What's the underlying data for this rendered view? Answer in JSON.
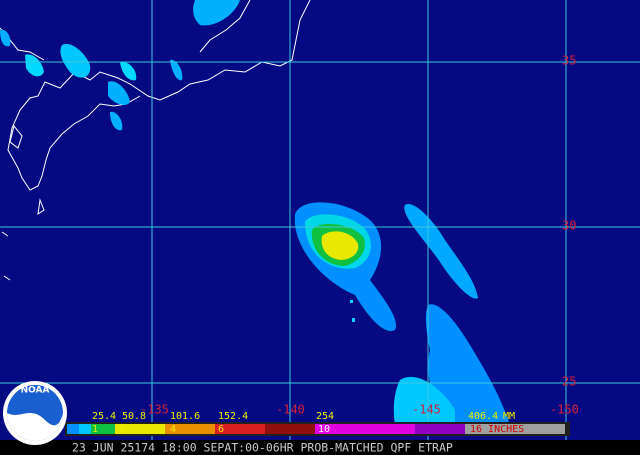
{
  "map": {
    "lat_labels": [
      "35",
      "30",
      "25"
    ],
    "lon_labels": [
      "-135",
      "-140",
      "-145",
      "-150"
    ],
    "legend": {
      "mm_labels": [
        "25.4",
        "50.8",
        "101.6",
        "152.4",
        "254",
        "406.4",
        "MM"
      ],
      "inch_labels": [
        "1",
        "2",
        "4",
        "6",
        "10",
        "16 INCHES"
      ]
    },
    "footer": "23 JUN 25174 18:00 SEPAT:00-06HR PROB-MATCHED QPF ETRAP",
    "logo": "NOAA"
  }
}
